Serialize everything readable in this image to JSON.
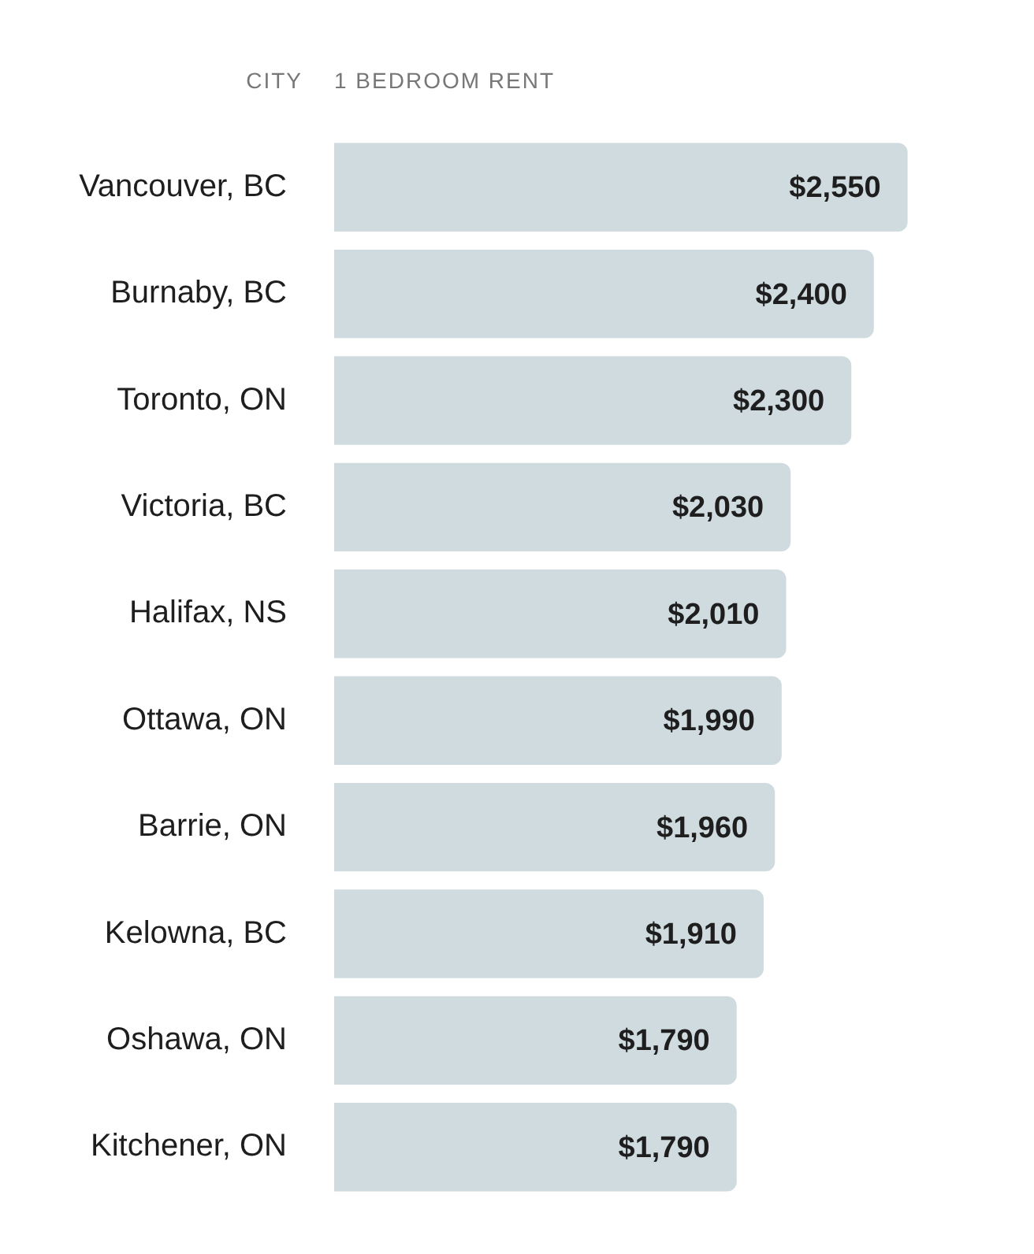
{
  "chart_data": {
    "type": "bar",
    "orientation": "horizontal",
    "ylabel": "CITY",
    "xlabel": "1 BEDROOM RENT",
    "categories": [
      "Vancouver, BC",
      "Burnaby, BC",
      "Toronto, ON",
      "Victoria, BC",
      "Halifax, NS",
      "Ottawa, ON",
      "Barrie, ON",
      "Kelowna, BC",
      "Oshawa, ON",
      "Kitchener, ON"
    ],
    "values": [
      2550,
      2400,
      2300,
      2030,
      2010,
      1990,
      1960,
      1910,
      1790,
      1790
    ],
    "value_labels": [
      "$2,550",
      "$2,400",
      "$2,300",
      "$2,030",
      "$2,010",
      "$1,990",
      "$1,960",
      "$1,910",
      "$1,790",
      "$1,790"
    ],
    "color": "#cfdbdf",
    "tick_labels": "y",
    "legend": false
  }
}
